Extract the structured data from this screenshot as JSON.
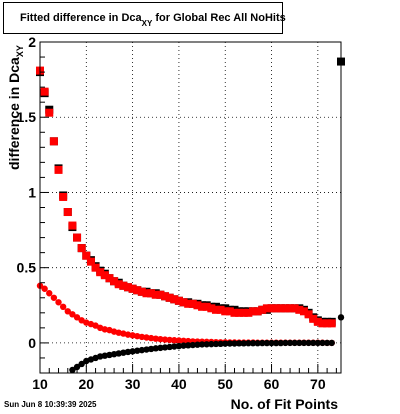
{
  "title": {
    "main": "Fitted difference in Dca",
    "subscript": "XY",
    "suffix": " for Global Rec All NoHits"
  },
  "footer": "Sun Jun  8 10:39:39 2025",
  "xlabel": "No. of Fit Points",
  "ylabel": {
    "main": "difference in Dca",
    "subscript": "XY"
  },
  "chart_data": {
    "type": "scatter",
    "xlim": [
      10,
      75
    ],
    "ylim": [
      -0.2,
      2.0
    ],
    "x_ticks": [
      10,
      20,
      30,
      40,
      50,
      60,
      70
    ],
    "y_ticks": [
      0,
      0.5,
      1,
      1.5,
      2
    ],
    "y_tick_labels": [
      "0",
      "0.5",
      "1",
      "1.5",
      "2"
    ],
    "grid": true,
    "colors": {
      "red": "#ff0000",
      "black": "#000000"
    },
    "series": [
      {
        "color": "#000000",
        "marker": "square",
        "x": [
          10,
          11,
          12,
          13,
          14,
          15,
          16,
          17,
          18,
          19,
          20,
          21,
          22,
          23,
          24,
          25,
          26,
          27,
          28,
          29,
          30,
          31,
          32,
          33,
          34,
          35,
          36,
          37,
          38,
          39,
          40,
          41,
          42,
          43,
          44,
          45,
          46,
          47,
          48,
          49,
          50,
          51,
          52,
          53,
          54,
          55,
          56,
          57,
          58,
          59,
          60,
          61,
          62,
          63,
          64,
          65,
          66,
          67,
          68,
          69,
          70,
          71,
          72,
          73,
          75
        ],
        "y": [
          1.8,
          1.66,
          1.55,
          1.34,
          1.16,
          0.98,
          0.87,
          0.77,
          0.7,
          0.63,
          0.58,
          0.55,
          0.51,
          0.48,
          0.46,
          0.43,
          0.41,
          0.4,
          0.38,
          0.37,
          0.36,
          0.35,
          0.34,
          0.34,
          0.33,
          0.33,
          0.32,
          0.31,
          0.3,
          0.29,
          0.28,
          0.27,
          0.27,
          0.26,
          0.26,
          0.25,
          0.25,
          0.24,
          0.24,
          0.23,
          0.23,
          0.22,
          0.22,
          0.21,
          0.21,
          0.21,
          0.21,
          0.21,
          0.22,
          0.22,
          0.23,
          0.23,
          0.23,
          0.23,
          0.23,
          0.23,
          0.23,
          0.22,
          0.2,
          0.17,
          0.15,
          0.14,
          0.14,
          0.14,
          1.87
        ]
      },
      {
        "color": "#ff0000",
        "marker": "square",
        "x": [
          10,
          11,
          12,
          13,
          14,
          15,
          16,
          17,
          18,
          19,
          20,
          21,
          22,
          23,
          24,
          25,
          26,
          27,
          28,
          29,
          30,
          31,
          32,
          33,
          34,
          35,
          36,
          37,
          38,
          39,
          40,
          41,
          42,
          43,
          44,
          45,
          46,
          47,
          48,
          49,
          50,
          51,
          52,
          53,
          54,
          55,
          56,
          57,
          58,
          59,
          60,
          61,
          62,
          63,
          64,
          65,
          66,
          67,
          68,
          69,
          70,
          71,
          72,
          73
        ],
        "y": [
          1.81,
          1.67,
          1.53,
          1.34,
          1.15,
          0.97,
          0.87,
          0.78,
          0.7,
          0.63,
          0.58,
          0.54,
          0.5,
          0.47,
          0.45,
          0.43,
          0.41,
          0.39,
          0.38,
          0.37,
          0.36,
          0.35,
          0.34,
          0.33,
          0.33,
          0.32,
          0.32,
          0.31,
          0.3,
          0.29,
          0.28,
          0.27,
          0.26,
          0.26,
          0.25,
          0.24,
          0.24,
          0.23,
          0.22,
          0.22,
          0.21,
          0.21,
          0.2,
          0.2,
          0.2,
          0.2,
          0.21,
          0.21,
          0.22,
          0.23,
          0.23,
          0.23,
          0.23,
          0.23,
          0.23,
          0.23,
          0.22,
          0.21,
          0.19,
          0.16,
          0.14,
          0.13,
          0.13,
          0.13
        ]
      },
      {
        "color": "#ff0000",
        "marker": "circle",
        "x": [
          10,
          11,
          12,
          13,
          14,
          15,
          16,
          17,
          18,
          19,
          20,
          21,
          22,
          23,
          24,
          25,
          26,
          27,
          28,
          29,
          30,
          31,
          32,
          33,
          34,
          35,
          36,
          37,
          38,
          39,
          40,
          41,
          42,
          43,
          44,
          45,
          46,
          47,
          48,
          49,
          50,
          51,
          52,
          53,
          54,
          55,
          56,
          57,
          58,
          59,
          60,
          61,
          62,
          63,
          64,
          65,
          66,
          67,
          68,
          69,
          70,
          71,
          72,
          73
        ],
        "y": [
          0.38,
          0.36,
          0.33,
          0.3,
          0.27,
          0.24,
          0.21,
          0.19,
          0.17,
          0.15,
          0.135,
          0.125,
          0.115,
          0.1,
          0.09,
          0.085,
          0.075,
          0.068,
          0.062,
          0.055,
          0.05,
          0.045,
          0.04,
          0.036,
          0.032,
          0.028,
          0.025,
          0.022,
          0.02,
          0.018,
          0.016,
          0.014,
          0.012,
          0.01,
          0.009,
          0.008,
          0.007,
          0.006,
          0.005,
          0.004,
          0.004,
          0.003,
          0.003,
          0.002,
          0.002,
          0.002,
          0.002,
          0.001,
          0.001,
          0.001,
          0.001,
          0.001,
          0.001,
          0.001,
          0.001,
          0.001,
          0.001,
          0.001,
          0.001,
          0.001,
          0.001,
          0.001,
          0.0,
          0.0
        ]
      },
      {
        "color": "#000000",
        "marker": "circle",
        "x": [
          17,
          18,
          19,
          20,
          21,
          22,
          23,
          24,
          25,
          26,
          27,
          28,
          29,
          30,
          31,
          32,
          33,
          34,
          35,
          36,
          37,
          38,
          39,
          40,
          41,
          42,
          43,
          44,
          45,
          46,
          47,
          48,
          49,
          50,
          51,
          52,
          53,
          54,
          55,
          56,
          57,
          58,
          59,
          60,
          61,
          62,
          63,
          64,
          65,
          66,
          67,
          68,
          69,
          70,
          71,
          72,
          73,
          75
        ],
        "y": [
          -0.18,
          -0.16,
          -0.14,
          -0.12,
          -0.11,
          -0.1,
          -0.09,
          -0.085,
          -0.08,
          -0.075,
          -0.07,
          -0.065,
          -0.06,
          -0.056,
          -0.052,
          -0.048,
          -0.044,
          -0.04,
          -0.036,
          -0.033,
          -0.03,
          -0.027,
          -0.024,
          -0.021,
          -0.018,
          -0.016,
          -0.014,
          -0.012,
          -0.01,
          -0.009,
          -0.008,
          -0.007,
          -0.006,
          -0.005,
          -0.004,
          -0.004,
          -0.003,
          -0.003,
          -0.002,
          -0.002,
          -0.002,
          -0.001,
          -0.001,
          -0.001,
          -0.001,
          -0.001,
          0.0,
          0.0,
          0.0,
          0.0,
          0.0,
          0.0,
          0.0,
          0.0,
          0.0,
          0.0,
          0.0,
          0.17
        ]
      }
    ]
  }
}
